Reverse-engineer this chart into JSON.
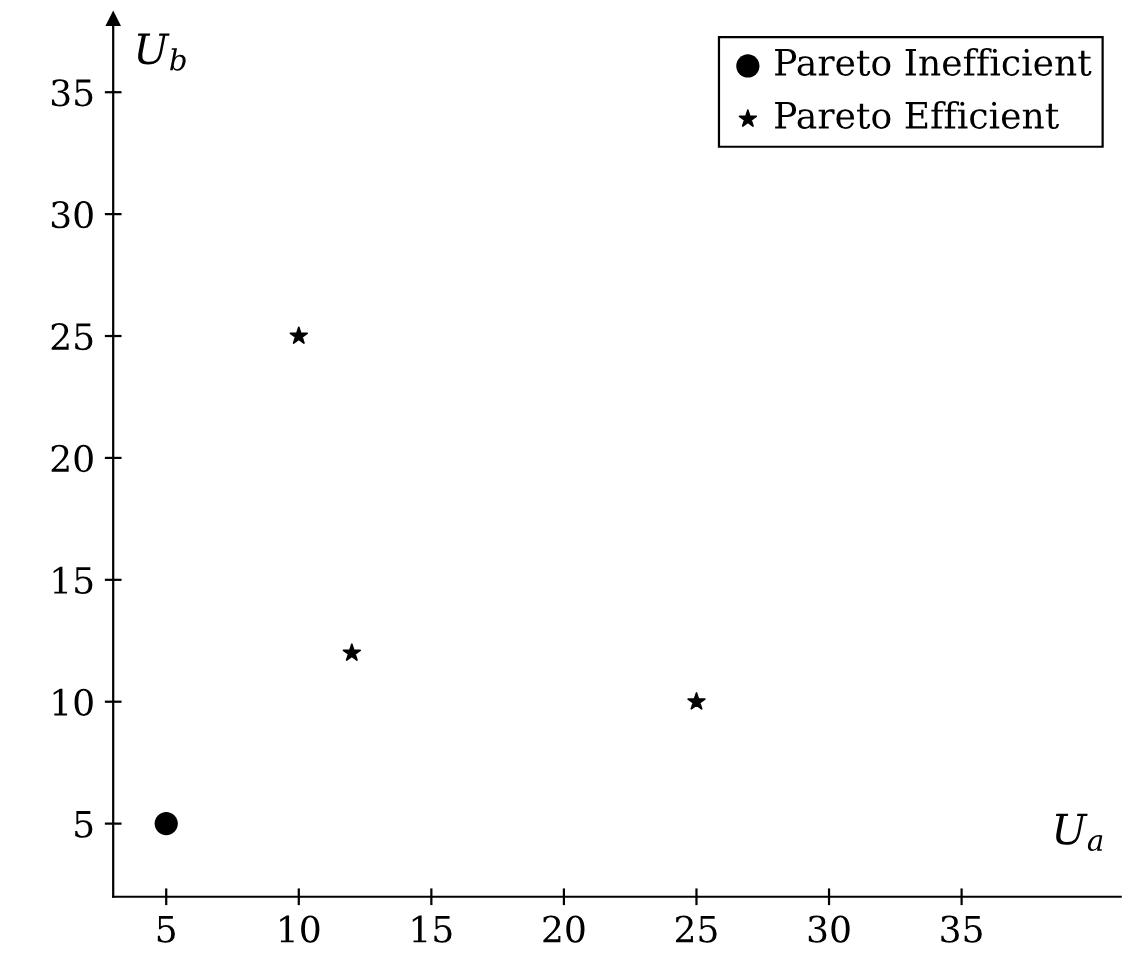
{
  "chart_data": {
    "type": "scatter",
    "xlabel": "U$_{a}$",
    "ylabel": "U$_{b}$",
    "series": [
      {
        "name": "Pareto Inefficient",
        "color": "#000000",
        "marker": "circle",
        "x": [
          5
        ],
        "values": [
          5
        ]
      },
      {
        "name": "Pareto Efficient",
        "color": "#000000",
        "marker": "star",
        "x": [
          10,
          12,
          25
        ],
        "values": [
          25,
          12,
          10
        ]
      }
    ],
    "xlim": [
      3,
      41
    ],
    "ylim": [
      2,
      38
    ],
    "xticks": [
      5,
      10,
      15,
      20,
      25,
      30,
      35
    ],
    "yticks": [
      5,
      10,
      15,
      20,
      25,
      30,
      35
    ],
    "grid": false,
    "legend": "top right"
  }
}
